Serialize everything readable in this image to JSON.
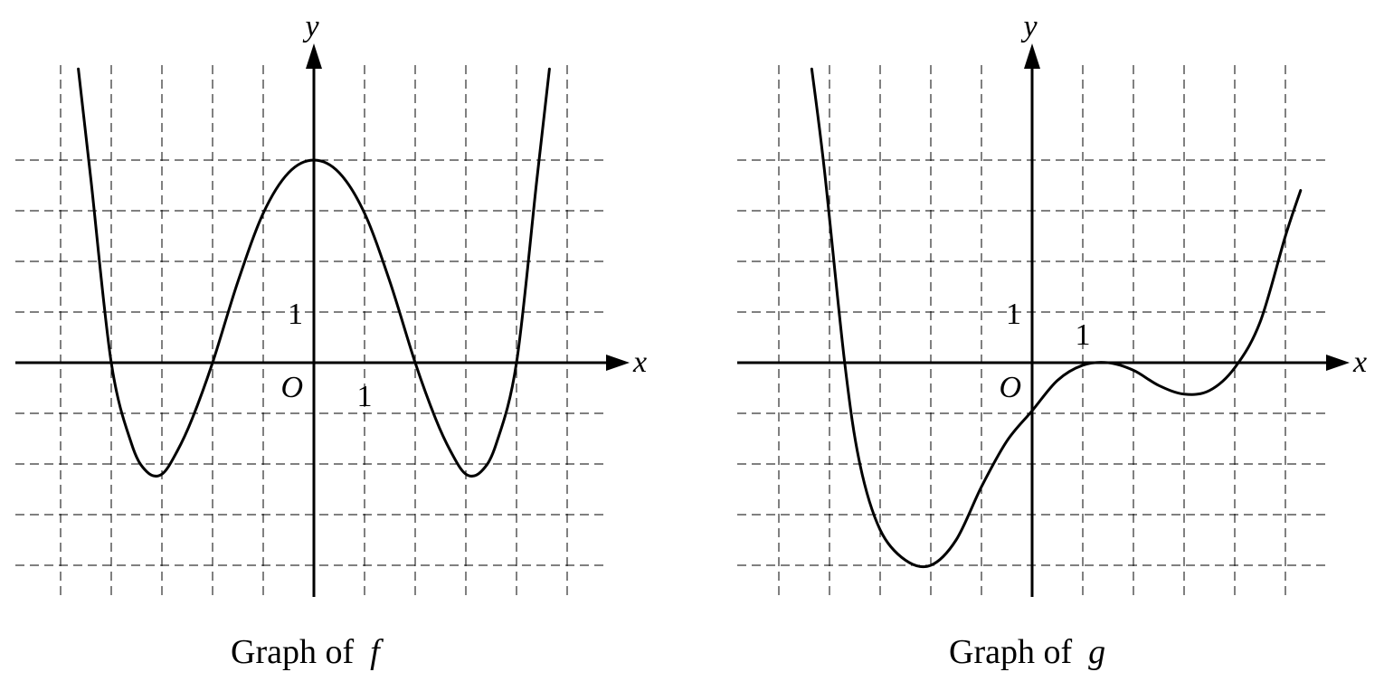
{
  "chart_data": [
    {
      "type": "line",
      "caption_prefix": "Graph of",
      "function_name": "f",
      "axis_x_label": "x",
      "axis_y_label": "y",
      "origin_label": "O",
      "x_unit_label": "1",
      "y_unit_label": "1",
      "xlim": [
        -5.5,
        5.5
      ],
      "ylim": [
        -4.5,
        4.5
      ],
      "grid": true,
      "grid_style": "dashed",
      "series": [
        {
          "x": [
            -4.65,
            -4.4,
            -4.0,
            -3.6,
            -3.3,
            -3.0,
            -2.7,
            -2.4,
            -2.0,
            -1.5,
            -1.0,
            -0.5,
            0.0,
            0.5,
            1.0,
            1.5,
            2.0,
            2.4,
            2.7,
            3.0,
            3.3,
            3.6,
            4.0,
            4.4,
            4.65
          ],
          "y": [
            5.8,
            3.6,
            0.0,
            -1.6,
            -2.15,
            -2.2,
            -1.75,
            -1.1,
            0.0,
            1.6,
            2.95,
            3.75,
            4.0,
            3.75,
            2.95,
            1.6,
            0.0,
            -1.1,
            -1.75,
            -2.2,
            -2.15,
            -1.6,
            0.0,
            3.6,
            5.8
          ]
        }
      ]
    },
    {
      "type": "line",
      "caption_prefix": "Graph of",
      "function_name": "g",
      "axis_x_label": "x",
      "axis_y_label": "y",
      "origin_label": "O",
      "x_unit_label": "1",
      "y_unit_label": "1",
      "xlim": [
        -5.5,
        5.5
      ],
      "ylim": [
        -4.5,
        4.5
      ],
      "grid": true,
      "grid_style": "dashed",
      "series": [
        {
          "x": [
            -4.35,
            -4.1,
            -3.7,
            -3.4,
            -3.0,
            -2.5,
            -2.0,
            -1.5,
            -1.0,
            -0.5,
            0.0,
            0.5,
            1.0,
            1.5,
            2.0,
            2.5,
            3.0,
            3.5,
            4.0,
            4.5,
            5.0,
            5.3
          ],
          "y": [
            5.8,
            3.8,
            0.0,
            -2.0,
            -3.3,
            -3.9,
            -4.0,
            -3.5,
            -2.45,
            -1.55,
            -0.95,
            -0.35,
            -0.05,
            0.0,
            -0.15,
            -0.45,
            -0.62,
            -0.55,
            -0.1,
            0.8,
            2.5,
            3.4
          ]
        }
      ]
    }
  ]
}
